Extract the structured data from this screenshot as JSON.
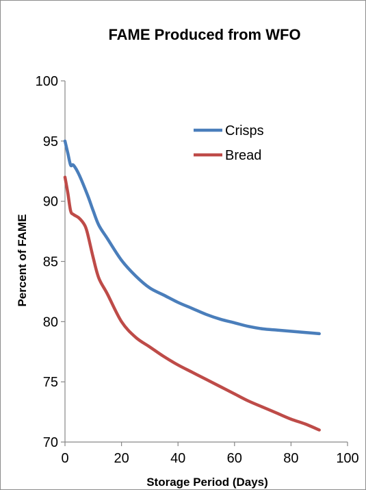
{
  "chart_data": {
    "type": "line",
    "title": "FAME Produced from WFO",
    "xlabel": "Storage Period (Days)",
    "ylabel": "Percent of FAME",
    "xlim": [
      0,
      100
    ],
    "ylim": [
      70,
      100
    ],
    "xticks": [
      0,
      20,
      40,
      60,
      80,
      100
    ],
    "yticks": [
      70,
      75,
      80,
      85,
      90,
      95,
      100
    ],
    "xtick_labels": [
      "0",
      "20",
      "40",
      "60",
      "80",
      "100"
    ],
    "ytick_labels": [
      "70",
      "75",
      "80",
      "85",
      "90",
      "95",
      "100"
    ],
    "grid": false,
    "legend_position": "top-right",
    "series": [
      {
        "name": "Crisps",
        "color": "#4a7ebb",
        "x": [
          0,
          1,
          2,
          3,
          5,
          8,
          10,
          12,
          15,
          20,
          25,
          30,
          35,
          40,
          45,
          50,
          55,
          60,
          65,
          70,
          75,
          80,
          85,
          90
        ],
        "y": [
          95.0,
          94.0,
          93.0,
          93.0,
          92.2,
          90.5,
          89.2,
          88.0,
          86.9,
          85.1,
          83.8,
          82.8,
          82.2,
          81.6,
          81.1,
          80.6,
          80.2,
          79.9,
          79.6,
          79.4,
          79.3,
          79.2,
          79.1,
          79.0
        ]
      },
      {
        "name": "Bread",
        "color": "#be4b48",
        "x": [
          0,
          1,
          2,
          3,
          5,
          7,
          8,
          10,
          12,
          15,
          20,
          25,
          30,
          35,
          40,
          45,
          50,
          55,
          60,
          65,
          70,
          75,
          80,
          85,
          90
        ],
        "y": [
          92.0,
          90.7,
          89.2,
          88.9,
          88.6,
          88.0,
          87.3,
          85.3,
          83.6,
          82.3,
          80.0,
          78.7,
          77.9,
          77.1,
          76.4,
          75.8,
          75.2,
          74.6,
          74.0,
          73.4,
          72.9,
          72.4,
          71.9,
          71.5,
          71.0
        ]
      }
    ]
  }
}
